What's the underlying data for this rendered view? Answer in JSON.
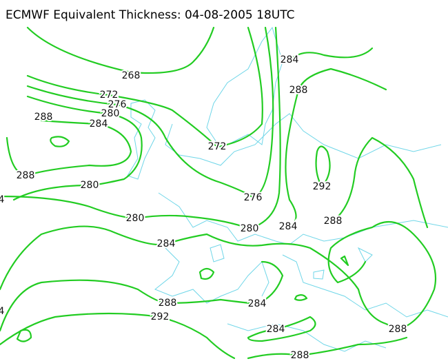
{
  "title": "ECMWF Equivalent Thickness: 04-08-2005 18UTC",
  "contour_labels": [
    "268",
    "284",
    "288",
    "272",
    "276",
    "280",
    "288",
    "284",
    "272",
    "288",
    "292",
    "280",
    "276",
    "280",
    "288",
    "280",
    "284",
    "284",
    "288",
    "284",
    "292",
    "284",
    "288",
    "288",
    "4",
    "4"
  ]
}
